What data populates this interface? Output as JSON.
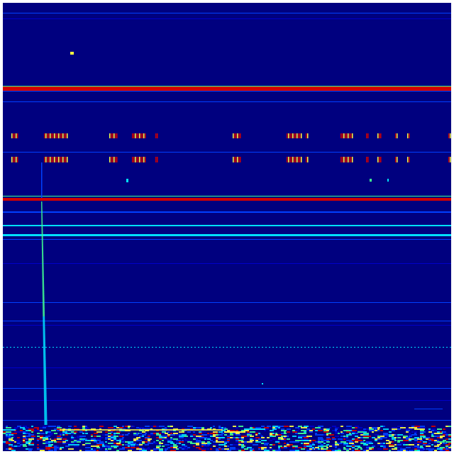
{
  "image": {
    "kind": "spectrogram-heatmap",
    "colormap": "jet",
    "colors": {
      "background": "#00007f",
      "low": "#0000c8",
      "mid_blue": "#0040ff",
      "cyan": "#00e0ff",
      "green": "#40ff90",
      "yellow": "#ffff40",
      "red": "#d00000"
    }
  }
}
